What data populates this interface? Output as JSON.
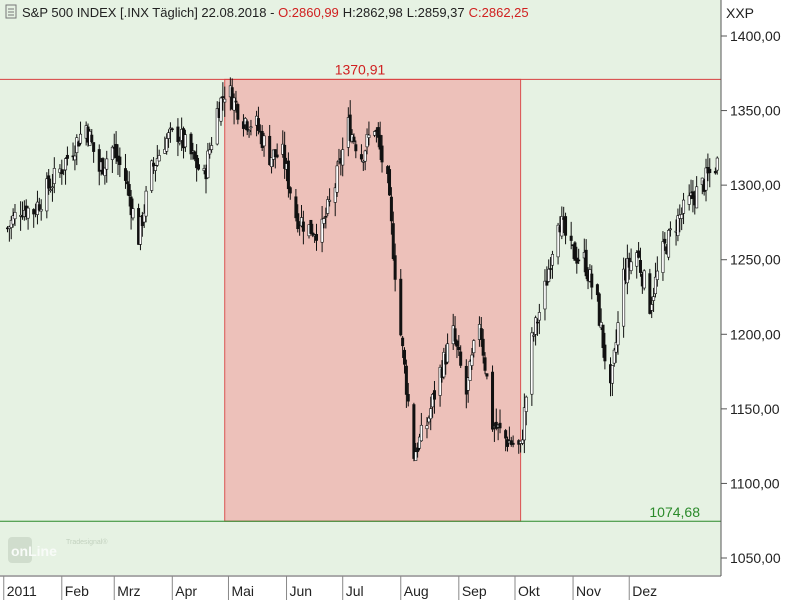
{
  "header": {
    "symbol_info": "S&P 500 INDEX [.INX  Täglich] 22.08.2018 - ",
    "open_label": "O:2860,99",
    "high_label": "H:2862,98",
    "low_label": "L:2859,37",
    "close_label": "C:2862,25"
  },
  "axis": {
    "currency": "XXP",
    "y_ticks": [
      "1400,00",
      "1350,00",
      "1300,00",
      "1250,00",
      "1200,00",
      "1150,00",
      "1100,00",
      "1050,00"
    ],
    "months": [
      "2011",
      "Feb",
      "Mrz",
      "Apr",
      "Mai",
      "Jun",
      "Jul",
      "Aug",
      "Sep",
      "Okt",
      "Nov",
      "Dez"
    ]
  },
  "annotations": {
    "high_value": "1370,91",
    "low_value": "1074,68"
  },
  "logo": {
    "brand_small": "Tradesignal®",
    "brand_main": "onLine"
  },
  "colors": {
    "background": "#e6f2e3",
    "highlight_fill": "#eebcb6",
    "highlight_stroke": "#d94040",
    "candle": "#111111",
    "high_line": "#d94040",
    "low_line": "#2a8a2a",
    "open_text": "#d02020",
    "close_text": "#d02020"
  },
  "chart_data": {
    "type": "candlestick",
    "title": "S&P 500 INDEX [.INX  Täglich]",
    "ylim": [
      1040,
      1420
    ],
    "y_ticks": [
      1400,
      1350,
      1300,
      1250,
      1200,
      1150,
      1100,
      1050
    ],
    "x_months": [
      "2011",
      "Feb",
      "Mrz",
      "Apr",
      "Mai",
      "Jun",
      "Jul",
      "Aug",
      "Sep",
      "Okt",
      "Nov",
      "Dez"
    ],
    "horizontal_lines": [
      {
        "value": 1370.91,
        "label": "1370,91",
        "color": "#d94040"
      },
      {
        "value": 1074.68,
        "label": "1074,68",
        "color": "#2a8a2a"
      }
    ],
    "highlight_range": {
      "from": "2011-04-29",
      "to": "2011-10-04",
      "top": 1370.91,
      "bottom": 1074.68
    },
    "close_series": [
      {
        "x": "2011-01-03",
        "y": 1271
      },
      {
        "x": "2011-01-10",
        "y": 1285
      },
      {
        "x": "2011-01-17",
        "y": 1283
      },
      {
        "x": "2011-01-24",
        "y": 1297
      },
      {
        "x": "2011-01-31",
        "y": 1310
      },
      {
        "x": "2011-02-07",
        "y": 1325
      },
      {
        "x": "2011-02-14",
        "y": 1340
      },
      {
        "x": "2011-02-21",
        "y": 1310
      },
      {
        "x": "2011-02-28",
        "y": 1325
      },
      {
        "x": "2011-03-07",
        "y": 1304
      },
      {
        "x": "2011-03-14",
        "y": 1265
      },
      {
        "x": "2011-03-21",
        "y": 1310
      },
      {
        "x": "2011-03-28",
        "y": 1330
      },
      {
        "x": "2011-04-04",
        "y": 1335
      },
      {
        "x": "2011-04-11",
        "y": 1320
      },
      {
        "x": "2011-04-18",
        "y": 1305
      },
      {
        "x": "2011-04-25",
        "y": 1350
      },
      {
        "x": "2011-04-29",
        "y": 1363
      },
      {
        "x": "2011-05-02",
        "y": 1361
      },
      {
        "x": "2011-05-09",
        "y": 1345
      },
      {
        "x": "2011-05-16",
        "y": 1340
      },
      {
        "x": "2011-05-23",
        "y": 1320
      },
      {
        "x": "2011-05-30",
        "y": 1320
      },
      {
        "x": "2011-06-06",
        "y": 1280
      },
      {
        "x": "2011-06-13",
        "y": 1271
      },
      {
        "x": "2011-06-20",
        "y": 1270
      },
      {
        "x": "2011-06-27",
        "y": 1300
      },
      {
        "x": "2011-07-04",
        "y": 1340
      },
      {
        "x": "2011-07-11",
        "y": 1320
      },
      {
        "x": "2011-07-18",
        "y": 1340
      },
      {
        "x": "2011-07-25",
        "y": 1300
      },
      {
        "x": "2011-08-01",
        "y": 1200
      },
      {
        "x": "2011-08-08",
        "y": 1120
      },
      {
        "x": "2011-08-15",
        "y": 1140
      },
      {
        "x": "2011-08-22",
        "y": 1175
      },
      {
        "x": "2011-08-29",
        "y": 1200
      },
      {
        "x": "2011-09-05",
        "y": 1160
      },
      {
        "x": "2011-09-12",
        "y": 1210
      },
      {
        "x": "2011-09-19",
        "y": 1140
      },
      {
        "x": "2011-09-26",
        "y": 1130
      },
      {
        "x": "2011-10-04",
        "y": 1123
      },
      {
        "x": "2011-10-10",
        "y": 1195
      },
      {
        "x": "2011-10-17",
        "y": 1230
      },
      {
        "x": "2011-10-24",
        "y": 1280
      },
      {
        "x": "2011-10-31",
        "y": 1255
      },
      {
        "x": "2011-11-07",
        "y": 1250
      },
      {
        "x": "2011-11-14",
        "y": 1220
      },
      {
        "x": "2011-11-21",
        "y": 1160
      },
      {
        "x": "2011-11-28",
        "y": 1240
      },
      {
        "x": "2011-12-05",
        "y": 1255
      },
      {
        "x": "2011-12-12",
        "y": 1220
      },
      {
        "x": "2011-12-19",
        "y": 1255
      },
      {
        "x": "2011-12-26",
        "y": 1275
      },
      {
        "x": "2012-01-03",
        "y": 1290
      },
      {
        "x": "2012-01-09",
        "y": 1300
      },
      {
        "x": "2012-01-17",
        "y": 1315
      }
    ]
  }
}
